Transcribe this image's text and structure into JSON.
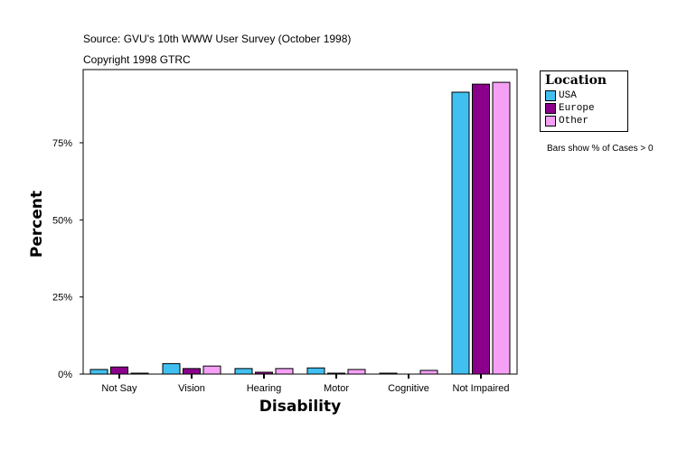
{
  "chart_data": {
    "type": "bar",
    "title": "Source: GVU's 10th WWW User Survey (October 1998)",
    "subtitle": "Copyright 1998 GTRC",
    "xlabel": "Disability",
    "ylabel": "Percent",
    "categories": [
      "Not Say",
      "Vision",
      "Hearing",
      "Motor",
      "Cognitive",
      "Not Impaired"
    ],
    "ylim": [
      0,
      100
    ],
    "yticks": [
      "0%",
      "25%",
      "50%",
      "75%"
    ],
    "ytick_values": [
      0,
      25,
      50,
      75
    ],
    "grid": false,
    "legend": {
      "title": "Location",
      "placement": "right"
    },
    "note": "Bars show % of Cases > 0",
    "series": [
      {
        "name": "USA",
        "color": "#40c0f0",
        "values": [
          1.5,
          3.4,
          1.8,
          2.0,
          0.3,
          91.4
        ]
      },
      {
        "name": "Europe",
        "color": "#8b008b",
        "values": [
          2.3,
          1.8,
          0.6,
          0.3,
          0.0,
          94.0
        ]
      },
      {
        "name": "Other",
        "color": "#f5a0f5",
        "values": [
          0.3,
          2.6,
          1.8,
          1.5,
          1.2,
          94.6
        ]
      }
    ]
  }
}
